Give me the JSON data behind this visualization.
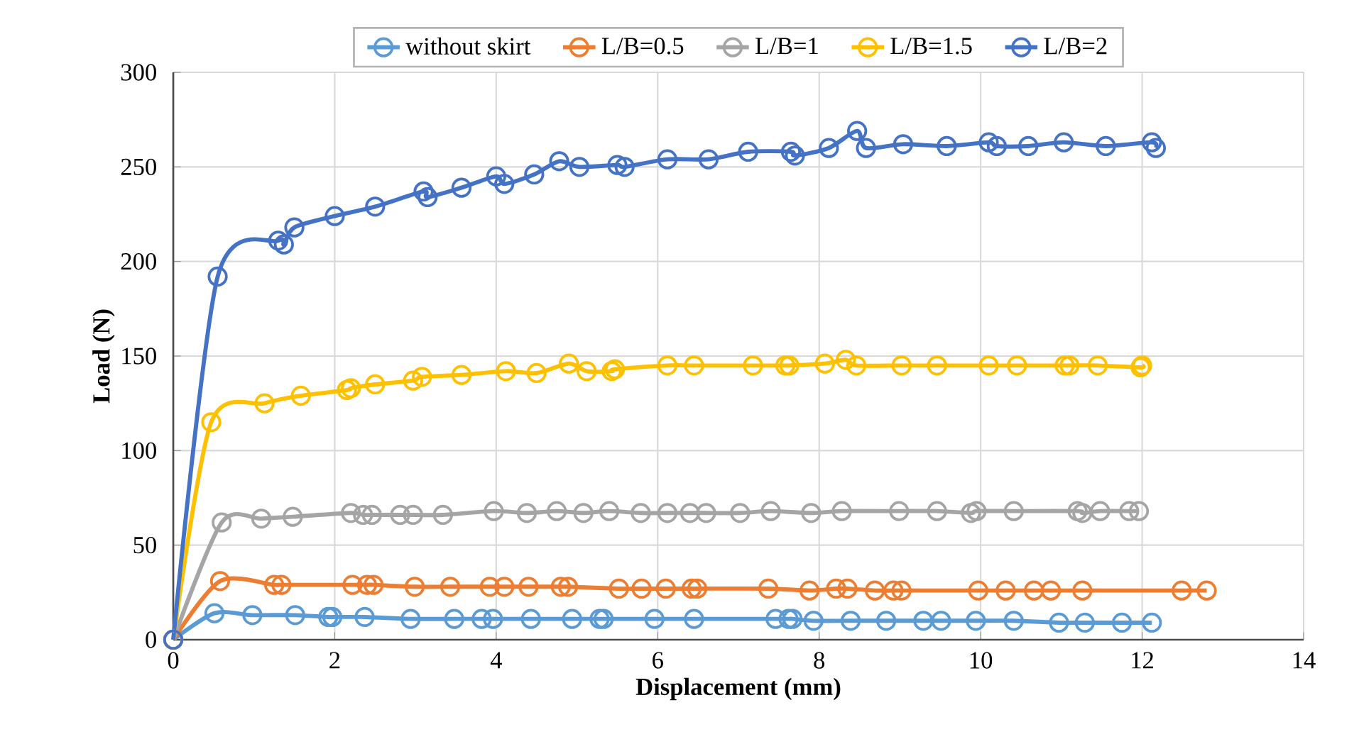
{
  "chart_data": {
    "type": "line",
    "xlabel": "Displacement (mm)",
    "ylabel": "Load (N)",
    "xlim": [
      0,
      14
    ],
    "ylim": [
      0,
      300
    ],
    "xticks": [
      0,
      2,
      4,
      6,
      8,
      10,
      12,
      14
    ],
    "yticks": [
      0,
      50,
      100,
      150,
      200,
      250,
      300
    ],
    "grid": true,
    "legend": "top",
    "marker": "circle",
    "line_style": "solid",
    "series": [
      {
        "name": "without skirt",
        "color": "#5b9bd5",
        "x": [
          0,
          0.51,
          0.98,
          1.51,
          1.92,
          1.97,
          2.37,
          2.94,
          3.48,
          3.82,
          3.96,
          4.43,
          4.94,
          5.28,
          5.33,
          5.96,
          6.45,
          7.46,
          7.62,
          7.67,
          7.93,
          8.39,
          8.83,
          9.29,
          9.51,
          9.94,
          10.41,
          10.97,
          11.29,
          11.75,
          12.12
        ],
        "values": [
          0,
          14,
          13,
          13,
          12,
          12,
          12,
          11,
          11,
          11,
          11,
          11,
          11,
          11,
          11,
          11,
          11,
          11,
          11,
          11,
          10,
          10,
          10,
          10,
          10,
          10,
          10,
          9,
          9,
          9,
          9
        ]
      },
      {
        "name": "L/B=0.5",
        "color": "#ed7d31",
        "x": [
          0,
          0.58,
          1.25,
          1.34,
          2.22,
          2.4,
          2.48,
          2.99,
          3.43,
          3.92,
          4.1,
          4.4,
          4.8,
          4.89,
          5.52,
          5.8,
          6.1,
          6.42,
          6.49,
          7.37,
          7.88,
          8.21,
          8.35,
          8.69,
          8.92,
          9.02,
          9.97,
          10.31,
          10.66,
          10.87,
          11.26,
          12.49,
          12.8
        ],
        "values": [
          0,
          31,
          29,
          29,
          29,
          29,
          29,
          28,
          28,
          28,
          28,
          28,
          28,
          28,
          27,
          27,
          27,
          27,
          27,
          27,
          26,
          27,
          27,
          26,
          26,
          26,
          26,
          26,
          26,
          26,
          26,
          26,
          26
        ]
      },
      {
        "name": "L/B=1",
        "color": "#a5a5a5",
        "x": [
          0,
          0.6,
          1.09,
          1.48,
          2.2,
          2.35,
          2.46,
          2.81,
          2.97,
          3.34,
          3.97,
          4.38,
          4.75,
          5.08,
          5.4,
          5.79,
          6.12,
          6.4,
          6.6,
          7.02,
          7.4,
          7.9,
          8.28,
          8.99,
          9.46,
          9.88,
          9.95,
          10.41,
          11.2,
          11.26,
          11.48,
          11.84,
          11.96
        ],
        "values": [
          0,
          62,
          64,
          65,
          67,
          66,
          66,
          66,
          66,
          66,
          68,
          67,
          68,
          67,
          68,
          67,
          67,
          67,
          67,
          67,
          68,
          67,
          68,
          68,
          68,
          67,
          68,
          68,
          68,
          67,
          68,
          68,
          68
        ]
      },
      {
        "name": "L/B=1.5",
        "color": "#ffc000",
        "x": [
          0,
          0.47,
          1.13,
          1.58,
          2.15,
          2.2,
          2.5,
          2.97,
          3.08,
          3.57,
          4.12,
          4.5,
          4.9,
          5.12,
          5.43,
          5.47,
          6.12,
          6.45,
          7.18,
          7.58,
          7.63,
          8.07,
          8.33,
          8.46,
          9.02,
          9.46,
          10.1,
          10.45,
          11.04,
          11.1,
          11.45,
          11.98,
          12.0
        ],
        "values": [
          0,
          115,
          125,
          129,
          132,
          133,
          135,
          137,
          139,
          140,
          142,
          141,
          146,
          142,
          142,
          143,
          145,
          145,
          145,
          145,
          145,
          146,
          148,
          145,
          145,
          145,
          145,
          145,
          145,
          145,
          145,
          144,
          145
        ]
      },
      {
        "name": "L/B=2",
        "color": "#4472c4",
        "x": [
          0,
          0.55,
          1.3,
          1.37,
          1.5,
          2.0,
          2.5,
          3.1,
          3.15,
          3.57,
          4.0,
          4.1,
          4.47,
          4.78,
          5.03,
          5.5,
          5.59,
          6.12,
          6.63,
          7.12,
          7.65,
          7.7,
          8.12,
          8.47,
          8.58,
          9.04,
          9.58,
          10.1,
          10.2,
          10.59,
          11.03,
          11.55,
          12.12,
          12.17
        ],
        "values": [
          0,
          192,
          211,
          209,
          218,
          224,
          229,
          237,
          234,
          239,
          245,
          241,
          246,
          253,
          250,
          251,
          250,
          254,
          254,
          258,
          258,
          256,
          260,
          269,
          260,
          262,
          261,
          263,
          261,
          261,
          263,
          261,
          263,
          260
        ]
      }
    ]
  }
}
